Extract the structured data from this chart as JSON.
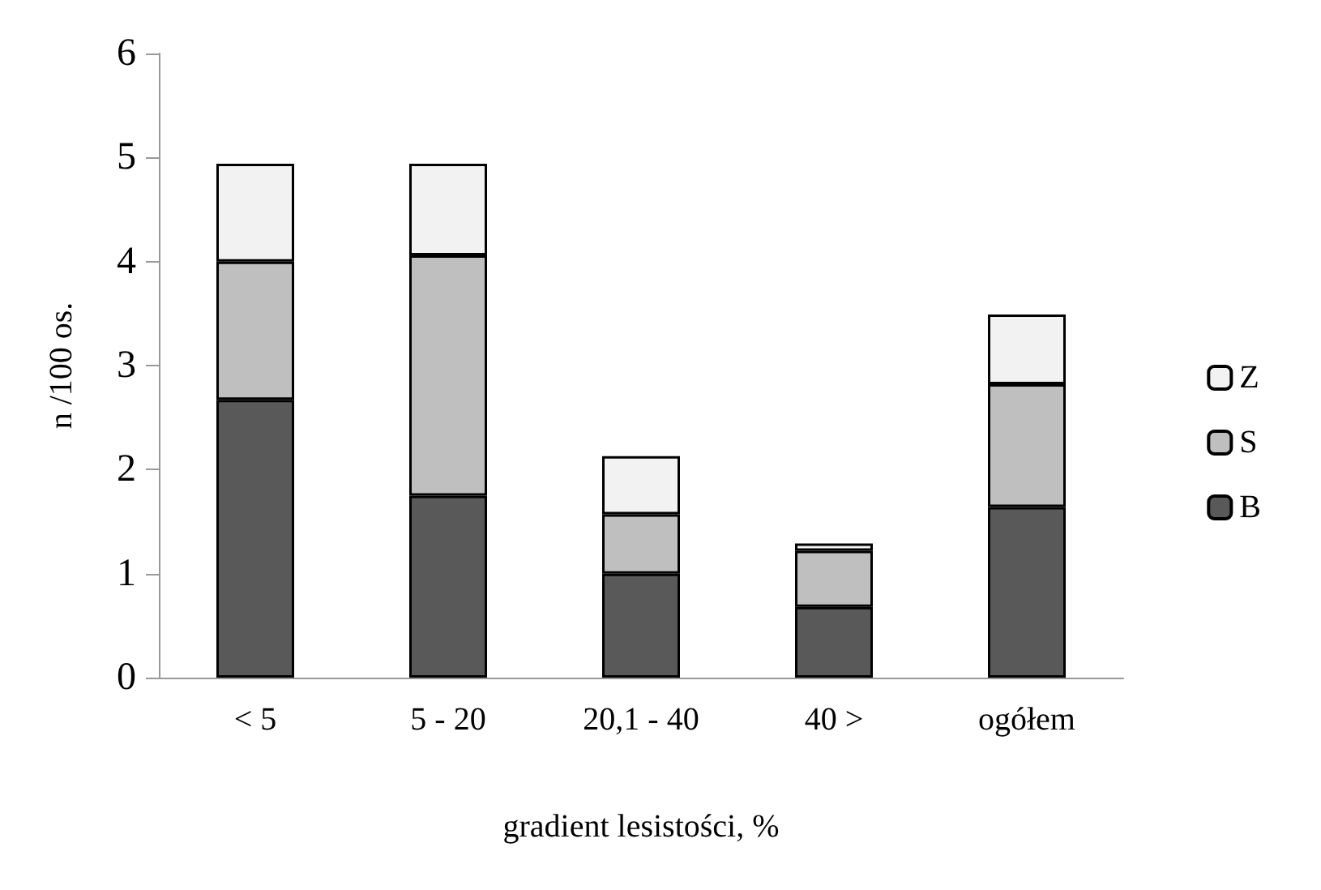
{
  "chart_data": {
    "type": "bar",
    "stacked": true,
    "xlabel": "gradient lesistości, %",
    "ylabel": "n /100 os.",
    "categories": [
      "< 5",
      "5 - 20",
      "20,1 - 40",
      "40 >",
      "ogółem"
    ],
    "series": [
      {
        "name": "B",
        "color": "#595959",
        "values": [
          2.67,
          1.75,
          1.0,
          0.68,
          1.64
        ]
      },
      {
        "name": "S",
        "color": "#bfbfbf",
        "values": [
          1.33,
          2.31,
          0.57,
          0.54,
          1.18
        ]
      },
      {
        "name": "Z",
        "color": "#f2f2f2",
        "values": [
          0.94,
          0.88,
          0.56,
          0.07,
          0.67
        ]
      }
    ],
    "ylim": [
      0,
      6
    ],
    "yticks": [
      0,
      1,
      2,
      3,
      4,
      5,
      6
    ],
    "grid": false,
    "legend": "right"
  }
}
